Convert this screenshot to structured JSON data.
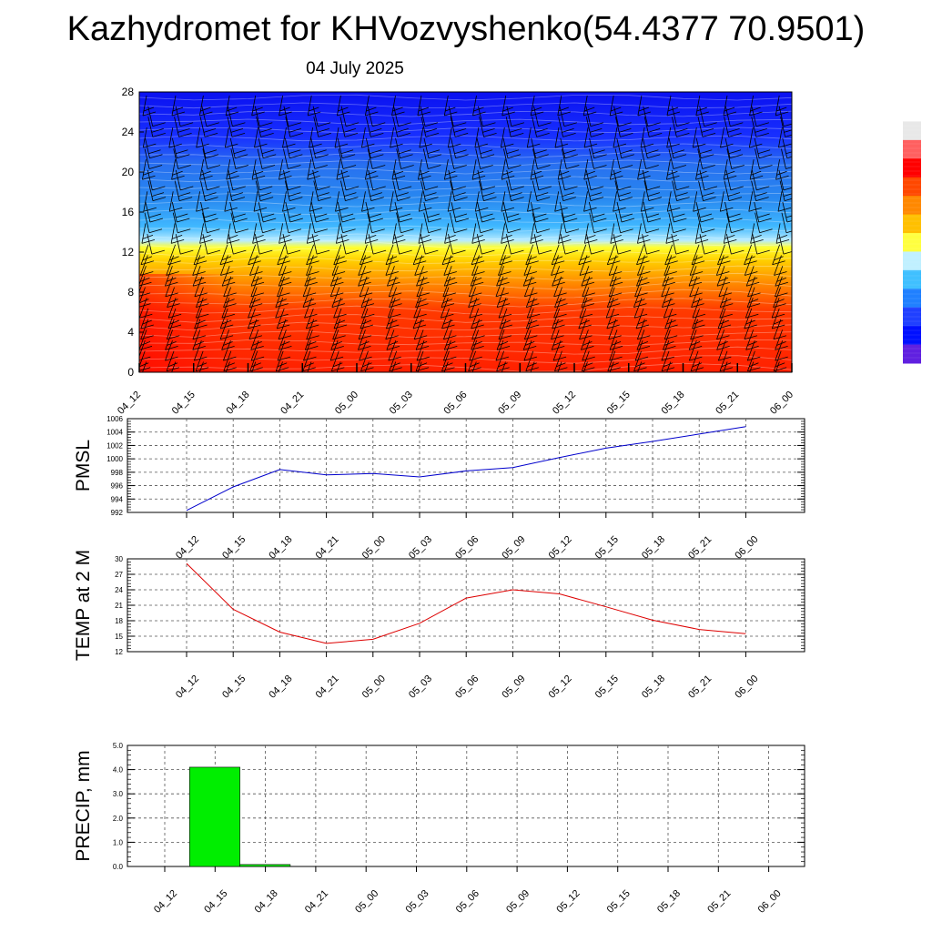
{
  "header": {
    "title": "Kazhydromet for KHVozvyshenko(54.4377 70.9501)",
    "date": "04 July 2025"
  },
  "colors": {
    "pmsl_line": "#0000cc",
    "temp_line": "#dd0000",
    "precip_bar": "#00ee00",
    "wind_barb": "#000000"
  },
  "chart_data": [
    {
      "type": "heatmap",
      "name": "height-time-section",
      "x": [
        "04_12",
        "04_15",
        "04_18",
        "04_21",
        "05_00",
        "05_03",
        "05_06",
        "05_09",
        "05_12",
        "05_15",
        "05_18",
        "05_21",
        "06_00"
      ],
      "ylim": [
        0,
        28
      ],
      "y_ticks": [
        "0",
        "4",
        "8",
        "12",
        "16",
        "20",
        "24",
        "28"
      ],
      "colorbar": [
        "#ffffff",
        "#e8e8e8",
        "#ff6060",
        "#ff0000",
        "#ff4800",
        "#ff8800",
        "#ffc000",
        "#ffff40",
        "#c0f0ff",
        "#40c0ff",
        "#2080ff",
        "#2040ff",
        "#0010ff",
        "#6020e0"
      ],
      "grid": false,
      "wind_barbs": true
    },
    {
      "type": "line",
      "name": "pmsl",
      "ylabel": "PMSL",
      "x": [
        "04_12",
        "04_15",
        "04_18",
        "04_21",
        "05_00",
        "05_03",
        "05_06",
        "05_09",
        "05_12",
        "05_15",
        "05_18",
        "05_21",
        "06_00"
      ],
      "values": [
        992.3,
        995.8,
        998.4,
        997.6,
        997.8,
        997.3,
        998.2,
        998.7,
        1000.2,
        1001.6,
        1002.6,
        1003.7,
        1004.8
      ],
      "ylim": [
        992,
        1006
      ],
      "y_ticks": [
        "992",
        "994",
        "996",
        "998",
        "1000",
        "1002",
        "1004",
        "1006"
      ],
      "grid": true
    },
    {
      "type": "line",
      "name": "temp-2m",
      "ylabel": "TEMP at 2 M",
      "x": [
        "04_12",
        "04_15",
        "04_18",
        "04_21",
        "05_00",
        "05_03",
        "05_06",
        "05_09",
        "05_12",
        "05_15",
        "05_18",
        "05_21",
        "06_00"
      ],
      "values": [
        29.1,
        20.2,
        15.8,
        13.6,
        14.4,
        17.5,
        22.4,
        24.0,
        23.2,
        20.7,
        18.1,
        16.3,
        15.5
      ],
      "ylim": [
        12,
        30
      ],
      "y_ticks": [
        "12",
        "15",
        "18",
        "21",
        "24",
        "27",
        "30"
      ],
      "grid": true
    },
    {
      "type": "bar",
      "name": "precip",
      "ylabel": "PRECIP, mm",
      "categories": [
        "04_12",
        "04_15",
        "04_18",
        "04_21",
        "05_00",
        "05_03",
        "05_06",
        "05_09",
        "05_12",
        "05_15",
        "05_18",
        "05_21",
        "06_00"
      ],
      "values": [
        0,
        4.1,
        0.08,
        0,
        0,
        0,
        0,
        0,
        0,
        0,
        0,
        0,
        0
      ],
      "ylim": [
        0,
        5
      ],
      "y_ticks": [
        "0.0",
        "1.0",
        "2.0",
        "3.0",
        "4.0",
        "5.0"
      ],
      "grid": true
    }
  ]
}
